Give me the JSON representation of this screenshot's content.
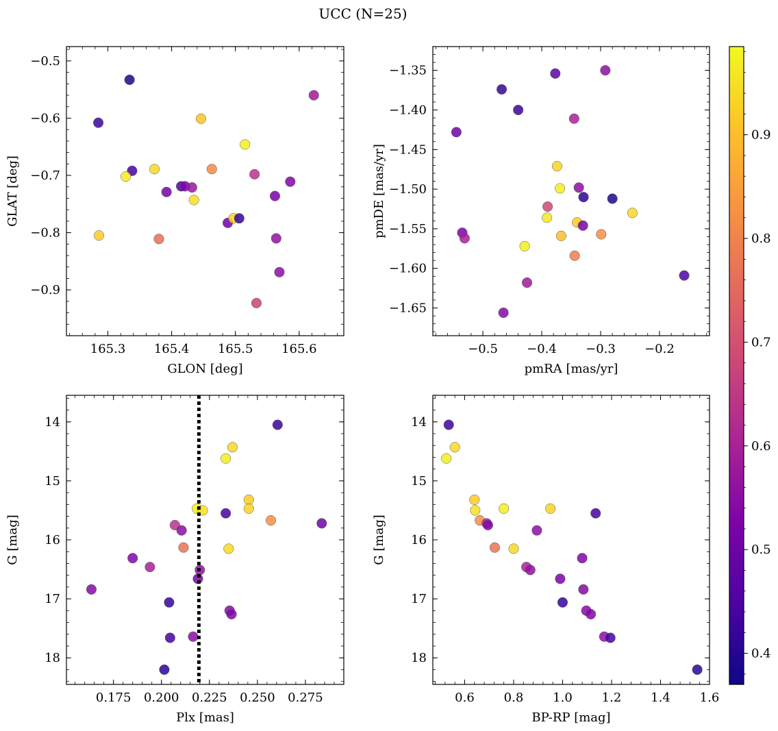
{
  "title": "UCC (N=25)",
  "colorbar": {
    "cmap": "plasma",
    "range": [
      0.37,
      0.985
    ],
    "ticks": [
      0.4,
      0.5,
      0.6,
      0.7,
      0.8,
      0.9
    ],
    "tick_labels": [
      "0.4",
      "0.5",
      "0.6",
      "0.7",
      "0.8",
      "0.9"
    ]
  },
  "chart_data": [
    {
      "type": "scatter",
      "id": "glon-glat",
      "xlabel": "GLON [deg]",
      "ylabel": "GLAT [deg]",
      "xlim": [
        165.235,
        165.67
      ],
      "ylim": [
        -0.98,
        -0.475
      ],
      "xticks": [
        165.3,
        165.4,
        165.5,
        165.6
      ],
      "xtick_labels": [
        "165.3",
        "165.4",
        "165.5",
        "165.6"
      ],
      "yticks": [
        -0.5,
        -0.6,
        -0.7,
        -0.8,
        -0.9
      ],
      "ytick_labels": [
        "−0.5",
        "−0.6",
        "−0.7",
        "−0.8",
        "−0.9"
      ],
      "invert_y": false,
      "points": [
        {
          "x": 165.334,
          "y": -0.533,
          "c": 0.39
        },
        {
          "x": 165.285,
          "y": -0.608,
          "c": 0.43
        },
        {
          "x": 165.338,
          "y": -0.692,
          "c": 0.44
        },
        {
          "x": 165.328,
          "y": -0.702,
          "c": 0.97
        },
        {
          "x": 165.373,
          "y": -0.689,
          "c": 0.94
        },
        {
          "x": 165.392,
          "y": -0.729,
          "c": 0.51
        },
        {
          "x": 165.415,
          "y": -0.719,
          "c": 0.45
        },
        {
          "x": 165.421,
          "y": -0.719,
          "c": 0.52
        },
        {
          "x": 165.432,
          "y": -0.721,
          "c": 0.57
        },
        {
          "x": 165.435,
          "y": -0.743,
          "c": 0.95
        },
        {
          "x": 165.446,
          "y": -0.601,
          "c": 0.91
        },
        {
          "x": 165.463,
          "y": -0.689,
          "c": 0.81
        },
        {
          "x": 165.286,
          "y": -0.805,
          "c": 0.92
        },
        {
          "x": 165.38,
          "y": -0.811,
          "c": 0.76
        },
        {
          "x": 165.488,
          "y": -0.783,
          "c": 0.5
        },
        {
          "x": 165.497,
          "y": -0.775,
          "c": 0.93
        },
        {
          "x": 165.506,
          "y": -0.775,
          "c": 0.42
        },
        {
          "x": 165.515,
          "y": -0.646,
          "c": 0.97
        },
        {
          "x": 165.53,
          "y": -0.698,
          "c": 0.64
        },
        {
          "x": 165.533,
          "y": -0.923,
          "c": 0.67
        },
        {
          "x": 165.562,
          "y": -0.736,
          "c": 0.52
        },
        {
          "x": 165.564,
          "y": -0.81,
          "c": 0.56
        },
        {
          "x": 165.569,
          "y": -0.869,
          "c": 0.55
        },
        {
          "x": 165.586,
          "y": -0.711,
          "c": 0.53
        },
        {
          "x": 165.623,
          "y": -0.56,
          "c": 0.58
        }
      ]
    },
    {
      "type": "scatter",
      "id": "pmra-pmde",
      "xlabel": "pmRA [mas/yr]",
      "ylabel": "pmDE [mas/yr]",
      "xlim": [
        -0.585,
        -0.115
      ],
      "ylim": [
        -1.685,
        -1.32
      ],
      "xticks": [
        -0.5,
        -0.4,
        -0.3,
        -0.2
      ],
      "xtick_labels": [
        "−0.5",
        "−0.4",
        "−0.3",
        "−0.2"
      ],
      "yticks": [
        -1.35,
        -1.4,
        -1.45,
        -1.5,
        -1.55,
        -1.6,
        -1.65
      ],
      "ytick_labels": [
        "−1.35",
        "−1.40",
        "−1.45",
        "−1.50",
        "−1.55",
        "−1.60",
        "−1.65"
      ],
      "invert_y": false,
      "points": [
        {
          "x": -0.377,
          "y": -1.354,
          "c": 0.47
        },
        {
          "x": -0.292,
          "y": -1.35,
          "c": 0.55
        },
        {
          "x": -0.468,
          "y": -1.374,
          "c": 0.42
        },
        {
          "x": -0.44,
          "y": -1.4,
          "c": 0.43
        },
        {
          "x": -0.345,
          "y": -1.411,
          "c": 0.6
        },
        {
          "x": -0.545,
          "y": -1.428,
          "c": 0.5
        },
        {
          "x": -0.374,
          "y": -1.471,
          "c": 0.93
        },
        {
          "x": -0.369,
          "y": -1.499,
          "c": 0.97
        },
        {
          "x": -0.337,
          "y": -1.498,
          "c": 0.55
        },
        {
          "x": -0.329,
          "y": -1.51,
          "c": 0.41
        },
        {
          "x": -0.28,
          "y": -1.512,
          "c": 0.39
        },
        {
          "x": -0.39,
          "y": -1.522,
          "c": 0.68
        },
        {
          "x": -0.246,
          "y": -1.53,
          "c": 0.94
        },
        {
          "x": -0.391,
          "y": -1.536,
          "c": 0.96
        },
        {
          "x": -0.34,
          "y": -1.542,
          "c": 0.92
        },
        {
          "x": -0.33,
          "y": -1.546,
          "c": 0.52
        },
        {
          "x": -0.535,
          "y": -1.555,
          "c": 0.52
        },
        {
          "x": -0.531,
          "y": -1.562,
          "c": 0.6
        },
        {
          "x": -0.367,
          "y": -1.559,
          "c": 0.9
        },
        {
          "x": -0.299,
          "y": -1.557,
          "c": 0.82
        },
        {
          "x": -0.429,
          "y": -1.572,
          "c": 0.97
        },
        {
          "x": -0.344,
          "y": -1.584,
          "c": 0.79
        },
        {
          "x": -0.425,
          "y": -1.618,
          "c": 0.58
        },
        {
          "x": -0.158,
          "y": -1.609,
          "c": 0.45
        },
        {
          "x": -0.465,
          "y": -1.656,
          "c": 0.54
        }
      ]
    },
    {
      "type": "scatter",
      "id": "plx-g",
      "xlabel": "Plx [mas]",
      "ylabel": "G [mag]",
      "xlim": [
        0.1505,
        0.295
      ],
      "ylim": [
        13.55,
        18.45
      ],
      "xticks": [
        0.175,
        0.2,
        0.225,
        0.25,
        0.275
      ],
      "xtick_labels": [
        "0.175",
        "0.200",
        "0.225",
        "0.250",
        "0.275"
      ],
      "yticks": [
        14,
        15,
        16,
        17,
        18
      ],
      "ytick_labels": [
        "14",
        "15",
        "16",
        "17",
        "18"
      ],
      "invert_y": true,
      "vline": {
        "x": 0.2195,
        "style": "dotted"
      },
      "points": [
        {
          "x": 0.2605,
          "y": 14.05,
          "c": 0.43
        },
        {
          "x": 0.237,
          "y": 14.43,
          "c": 0.94
        },
        {
          "x": 0.2335,
          "y": 14.62,
          "c": 0.97
        },
        {
          "x": 0.2455,
          "y": 15.32,
          "c": 0.92
        },
        {
          "x": 0.2455,
          "y": 15.47,
          "c": 0.93
        },
        {
          "x": 0.2185,
          "y": 15.47,
          "c": 0.97
        },
        {
          "x": 0.2215,
          "y": 15.5,
          "c": 0.95
        },
        {
          "x": 0.2335,
          "y": 15.55,
          "c": 0.44
        },
        {
          "x": 0.257,
          "y": 15.67,
          "c": 0.82
        },
        {
          "x": 0.2835,
          "y": 15.72,
          "c": 0.5
        },
        {
          "x": 0.207,
          "y": 15.75,
          "c": 0.64
        },
        {
          "x": 0.2105,
          "y": 15.84,
          "c": 0.55
        },
        {
          "x": 0.2115,
          "y": 16.13,
          "c": 0.77
        },
        {
          "x": 0.235,
          "y": 16.15,
          "c": 0.94
        },
        {
          "x": 0.185,
          "y": 16.31,
          "c": 0.53
        },
        {
          "x": 0.194,
          "y": 16.46,
          "c": 0.6
        },
        {
          "x": 0.22,
          "y": 16.51,
          "c": 0.56
        },
        {
          "x": 0.219,
          "y": 16.66,
          "c": 0.52
        },
        {
          "x": 0.1635,
          "y": 16.84,
          "c": 0.54
        },
        {
          "x": 0.204,
          "y": 17.06,
          "c": 0.42
        },
        {
          "x": 0.2355,
          "y": 17.2,
          "c": 0.54
        },
        {
          "x": 0.2365,
          "y": 17.26,
          "c": 0.53
        },
        {
          "x": 0.2165,
          "y": 17.64,
          "c": 0.55
        },
        {
          "x": 0.2045,
          "y": 17.66,
          "c": 0.44
        },
        {
          "x": 0.2015,
          "y": 18.2,
          "c": 0.41
        }
      ]
    },
    {
      "type": "scatter",
      "id": "bprp-g",
      "xlabel": "BP-RP [mag]",
      "ylabel": "G [mag]",
      "xlim": [
        0.47,
        1.6
      ],
      "ylim": [
        13.55,
        18.45
      ],
      "xticks": [
        0.6,
        0.8,
        1.0,
        1.2,
        1.4,
        1.6
      ],
      "xtick_labels": [
        "0.6",
        "0.8",
        "1.0",
        "1.2",
        "1.4",
        "1.6"
      ],
      "yticks": [
        14,
        15,
        16,
        17,
        18
      ],
      "ytick_labels": [
        "14",
        "15",
        "16",
        "17",
        "18"
      ],
      "invert_y": true,
      "points": [
        {
          "x": 0.535,
          "y": 14.05,
          "c": 0.43
        },
        {
          "x": 0.56,
          "y": 14.43,
          "c": 0.94
        },
        {
          "x": 0.525,
          "y": 14.62,
          "c": 0.97
        },
        {
          "x": 0.64,
          "y": 15.32,
          "c": 0.92
        },
        {
          "x": 0.643,
          "y": 15.5,
          "c": 0.95
        },
        {
          "x": 0.76,
          "y": 15.47,
          "c": 0.97
        },
        {
          "x": 0.95,
          "y": 15.47,
          "c": 0.93
        },
        {
          "x": 1.135,
          "y": 15.55,
          "c": 0.44
        },
        {
          "x": 0.662,
          "y": 15.67,
          "c": 0.82
        },
        {
          "x": 0.69,
          "y": 15.72,
          "c": 0.6
        },
        {
          "x": 0.695,
          "y": 15.75,
          "c": 0.53
        },
        {
          "x": 0.895,
          "y": 15.84,
          "c": 0.55
        },
        {
          "x": 0.723,
          "y": 16.13,
          "c": 0.77
        },
        {
          "x": 0.8,
          "y": 16.15,
          "c": 0.94
        },
        {
          "x": 1.08,
          "y": 16.31,
          "c": 0.53
        },
        {
          "x": 0.852,
          "y": 16.46,
          "c": 0.6
        },
        {
          "x": 0.868,
          "y": 16.51,
          "c": 0.56
        },
        {
          "x": 0.99,
          "y": 16.66,
          "c": 0.52
        },
        {
          "x": 1.085,
          "y": 16.84,
          "c": 0.54
        },
        {
          "x": 1.0,
          "y": 17.06,
          "c": 0.42
        },
        {
          "x": 1.097,
          "y": 17.2,
          "c": 0.54
        },
        {
          "x": 1.115,
          "y": 17.26,
          "c": 0.53
        },
        {
          "x": 1.17,
          "y": 17.64,
          "c": 0.55
        },
        {
          "x": 1.195,
          "y": 17.66,
          "c": 0.44
        },
        {
          "x": 1.55,
          "y": 18.2,
          "c": 0.41
        }
      ]
    }
  ]
}
